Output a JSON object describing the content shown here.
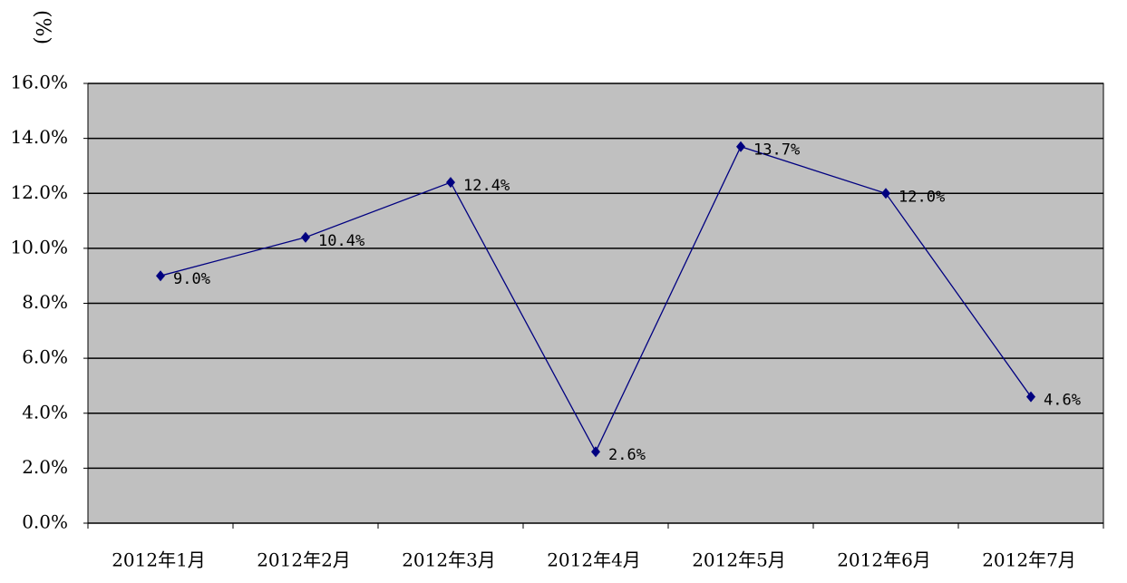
{
  "chart_data": {
    "type": "line",
    "y_label": "(%)",
    "categories": [
      "2012年1月",
      "2012年2月",
      "2012年3月",
      "2012年4月",
      "2012年5月",
      "2012年6月",
      "2012年7月"
    ],
    "values": [
      9.0,
      10.4,
      12.4,
      2.6,
      13.7,
      12.0,
      4.6
    ],
    "value_labels": [
      "9.0%",
      "10.4%",
      "12.4%",
      "2.6%",
      "13.7%",
      "12.0%",
      "4.6%"
    ],
    "color": "#000080",
    "plot_background": "#c0c0c0",
    "grid": true,
    "ylim": [
      0,
      16
    ],
    "yticks": [
      {
        "value": 0,
        "label": "0.0%"
      },
      {
        "value": 2,
        "label": "2.0%"
      },
      {
        "value": 4,
        "label": "4.0%"
      },
      {
        "value": 6,
        "label": "6.0%"
      },
      {
        "value": 8,
        "label": "8.0%"
      },
      {
        "value": 10,
        "label": "10.0%"
      },
      {
        "value": 12,
        "label": "12.0%"
      },
      {
        "value": 14,
        "label": "14.0%"
      },
      {
        "value": 16,
        "label": "16.0%"
      }
    ]
  }
}
